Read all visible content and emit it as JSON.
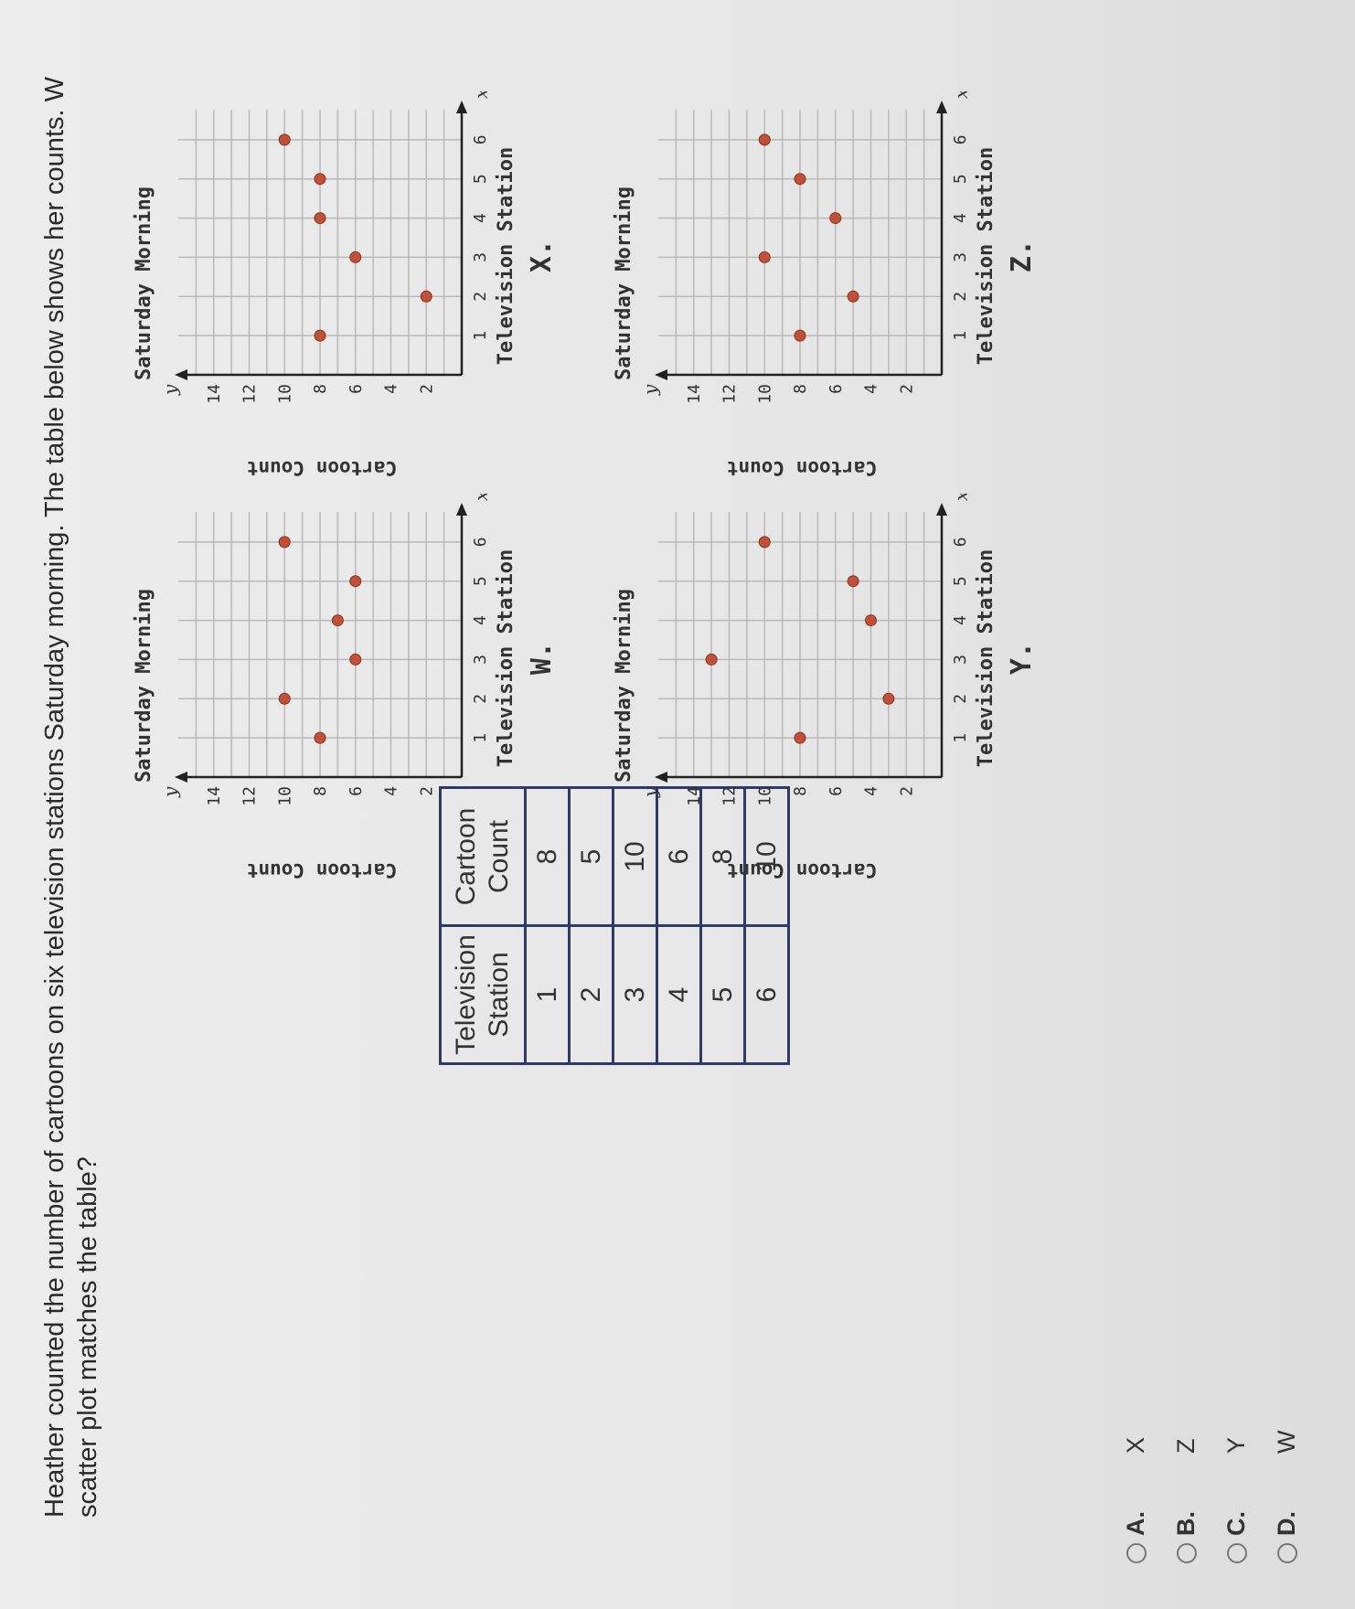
{
  "question": {
    "line1": "Heather counted the number of cartoons on six television stations Saturday morning. The table below shows her counts. W",
    "line2": "scatter plot matches the table?"
  },
  "table": {
    "headers": [
      "Television Station",
      "Cartoon Count"
    ],
    "rows": [
      [
        "1",
        "8"
      ],
      [
        "2",
        "5"
      ],
      [
        "3",
        "10"
      ],
      [
        "4",
        "6"
      ],
      [
        "5",
        "8"
      ],
      [
        "6",
        "10"
      ]
    ]
  },
  "plots": [
    {
      "label": "W.",
      "title": "Saturday Morning",
      "xlabel": "Television Station",
      "ylabel": "Cartoon Count",
      "x_axis_name": "x",
      "y_axis_name": "y"
    },
    {
      "label": "X.",
      "title": "Saturday Morning",
      "xlabel": "Television Station",
      "ylabel": "Cartoon Count",
      "x_axis_name": "x",
      "y_axis_name": "y"
    },
    {
      "label": "Y.",
      "title": "Saturday Morning",
      "xlabel": "Television Station",
      "ylabel": "Cartoon Count",
      "x_axis_name": "x",
      "y_axis_name": "y"
    },
    {
      "label": "Z.",
      "title": "Saturday Morning",
      "xlabel": "Television Station",
      "ylabel": "Cartoon Count",
      "x_axis_name": "x",
      "y_axis_name": "y"
    }
  ],
  "chart_data": [
    {
      "type": "scatter",
      "title": "Saturday Morning",
      "xlabel": "Television Station",
      "ylabel": "Cartoon Count",
      "xlim": [
        0,
        7
      ],
      "ylim": [
        0,
        16
      ],
      "x_ticks": [
        1,
        2,
        3,
        4,
        5,
        6
      ],
      "y_ticks": [
        2,
        4,
        6,
        8,
        10,
        12,
        14
      ],
      "grid": true,
      "point_color": "#c0503a",
      "x": [
        1,
        2,
        3,
        4,
        5,
        6
      ],
      "y": [
        8,
        10,
        6,
        7,
        6,
        10
      ]
    },
    {
      "type": "scatter",
      "title": "Saturday Morning",
      "xlabel": "Television Station",
      "ylabel": "Cartoon Count",
      "xlim": [
        0,
        7
      ],
      "ylim": [
        0,
        16
      ],
      "x_ticks": [
        1,
        2,
        3,
        4,
        5,
        6
      ],
      "y_ticks": [
        2,
        4,
        6,
        8,
        10,
        12,
        14
      ],
      "grid": true,
      "point_color": "#c0503a",
      "x": [
        1,
        2,
        3,
        4,
        5,
        6
      ],
      "y": [
        8,
        2,
        6,
        8,
        8,
        10
      ]
    },
    {
      "type": "scatter",
      "title": "Saturday Morning",
      "xlabel": "Television Station",
      "ylabel": "Cartoon Count",
      "xlim": [
        0,
        7
      ],
      "ylim": [
        0,
        16
      ],
      "x_ticks": [
        1,
        2,
        3,
        4,
        5,
        6
      ],
      "y_ticks": [
        2,
        4,
        6,
        8,
        10,
        12,
        14
      ],
      "grid": true,
      "point_color": "#c0503a",
      "x": [
        1,
        2,
        3,
        4,
        5,
        6
      ],
      "y": [
        8,
        3,
        13,
        4,
        5,
        10
      ]
    },
    {
      "type": "scatter",
      "title": "Saturday Morning",
      "xlabel": "Television Station",
      "ylabel": "Cartoon Count",
      "xlim": [
        0,
        7
      ],
      "ylim": [
        0,
        16
      ],
      "x_ticks": [
        1,
        2,
        3,
        4,
        5,
        6
      ],
      "y_ticks": [
        2,
        4,
        6,
        8,
        10,
        12,
        14
      ],
      "grid": true,
      "point_color": "#c0503a",
      "x": [
        1,
        2,
        3,
        4,
        5,
        6
      ],
      "y": [
        8,
        5,
        10,
        6,
        8,
        10
      ]
    }
  ],
  "choices": [
    {
      "letter": "A.",
      "value": "X"
    },
    {
      "letter": "B.",
      "value": "Z"
    },
    {
      "letter": "C.",
      "value": "Y"
    },
    {
      "letter": "D.",
      "value": "W"
    }
  ]
}
